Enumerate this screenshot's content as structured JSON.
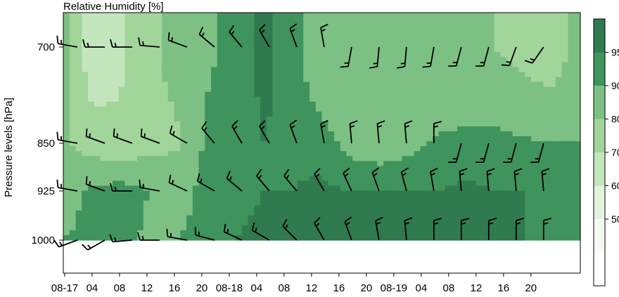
{
  "chart_data": {
    "type": "heatmap",
    "title": "Relative Humidity [%]",
    "ylabel": "Pressure levels [hPa]",
    "xlabel": "",
    "x_tick_labels": [
      "08-17",
      "04",
      "08",
      "12",
      "16",
      "20",
      "08-18",
      "04",
      "08",
      "12",
      "16",
      "20",
      "08-19",
      "04",
      "08",
      "12",
      "16",
      "20"
    ],
    "y_levels": [
      700,
      850,
      925,
      1000
    ],
    "y_tick_labels": [
      "700",
      "850",
      "925",
      "1000"
    ],
    "colorbar": {
      "ticks": [
        "50",
        "60",
        "70",
        "80",
        "90",
        "95"
      ],
      "bins": [
        {
          "range": "<45",
          "color": "#ffffff"
        },
        {
          "range": "45-50",
          "color": "#f4fbf2"
        },
        {
          "range": "50-60",
          "color": "#e2f3de"
        },
        {
          "range": "60-70",
          "color": "#c3e6bc"
        },
        {
          "range": "70-80",
          "color": "#a1d59a"
        },
        {
          "range": "80-90",
          "color": "#7cc183"
        },
        {
          "range": "90-95",
          "color": "#3f935d"
        },
        {
          "range": "95-100",
          "color": "#2f7a4e"
        }
      ]
    },
    "rh_field": {
      "levels": [
        700,
        850,
        925,
        1000
      ],
      "times": [
        "08-17 00",
        "04",
        "08",
        "12",
        "16",
        "20",
        "08-18 00",
        "04",
        "08",
        "12",
        "16",
        "20",
        "08-19 00",
        "04",
        "08",
        "12",
        "16",
        "20",
        "24"
      ],
      "values": [
        [
          85,
          62,
          68,
          78,
          84,
          88,
          93,
          96,
          93,
          82,
          80,
          80,
          80,
          80,
          80,
          80,
          76,
          72,
          85
        ],
        [
          82,
          75,
          72,
          76,
          79,
          92,
          94,
          95,
          94,
          93,
          88,
          86,
          88,
          91,
          92,
          92,
          91,
          90,
          90
        ],
        [
          86,
          92,
          94,
          90,
          86,
          93,
          94,
          95,
          95,
          96,
          95,
          95,
          95,
          95,
          96,
          95,
          95,
          94,
          93
        ],
        [
          90,
          92,
          93,
          88,
          90,
          93,
          95,
          96,
          96,
          96,
          96,
          96,
          96,
          96,
          96,
          96,
          95,
          95,
          95
        ]
      ]
    },
    "wind_barbs": {
      "700": [
        [
          280,
          15
        ],
        [
          270,
          15
        ],
        [
          270,
          15
        ],
        [
          275,
          15
        ],
        [
          290,
          15
        ],
        [
          310,
          15
        ],
        [
          320,
          15
        ],
        [
          330,
          15
        ],
        [
          340,
          15
        ],
        [
          350,
          15
        ],
        [
          190,
          15
        ],
        [
          185,
          15
        ],
        [
          185,
          15
        ],
        [
          190,
          15
        ],
        [
          195,
          15
        ],
        [
          195,
          15
        ],
        [
          200,
          15
        ],
        [
          215,
          15
        ]
      ],
      "850": [
        [
          280,
          15
        ],
        [
          290,
          15
        ],
        [
          290,
          15
        ],
        [
          290,
          15
        ],
        [
          300,
          15
        ],
        [
          320,
          15
        ],
        [
          330,
          15
        ],
        [
          330,
          15
        ],
        [
          340,
          15
        ],
        [
          350,
          15
        ],
        [
          355,
          15
        ],
        [
          355,
          15
        ],
        [
          355,
          15
        ],
        [
          0,
          15
        ],
        [
          195,
          15
        ],
        [
          195,
          15
        ],
        [
          195,
          15
        ],
        [
          195,
          15
        ]
      ],
      "925": [
        [
          280,
          15
        ],
        [
          290,
          15
        ],
        [
          270,
          15
        ],
        [
          280,
          15
        ],
        [
          295,
          15
        ],
        [
          300,
          15
        ],
        [
          310,
          15
        ],
        [
          320,
          15
        ],
        [
          320,
          15
        ],
        [
          330,
          15
        ],
        [
          335,
          15
        ],
        [
          340,
          15
        ],
        [
          345,
          15
        ],
        [
          350,
          15
        ],
        [
          355,
          15
        ],
        [
          355,
          15
        ],
        [
          355,
          15
        ],
        [
          355,
          15
        ]
      ],
      "1000": [
        [
          250,
          15
        ],
        [
          240,
          15
        ],
        [
          265,
          15
        ],
        [
          270,
          15
        ],
        [
          280,
          15
        ],
        [
          285,
          15
        ],
        [
          295,
          15
        ],
        [
          300,
          15
        ],
        [
          315,
          15
        ],
        [
          330,
          15
        ],
        [
          340,
          15
        ],
        [
          350,
          15
        ],
        [
          355,
          15
        ],
        [
          0,
          15
        ],
        [
          0,
          15
        ],
        [
          0,
          15
        ],
        [
          0,
          15
        ],
        [
          0,
          15
        ]
      ]
    }
  }
}
